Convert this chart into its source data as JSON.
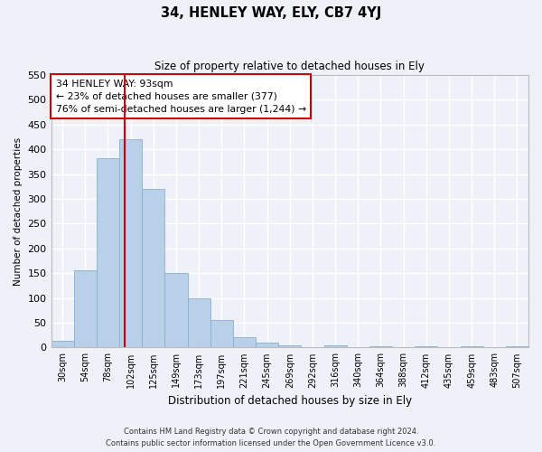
{
  "title": "34, HENLEY WAY, ELY, CB7 4YJ",
  "subtitle": "Size of property relative to detached houses in Ely",
  "xlabel": "Distribution of detached houses by size in Ely",
  "ylabel": "Number of detached properties",
  "categories": [
    "30sqm",
    "54sqm",
    "78sqm",
    "102sqm",
    "125sqm",
    "149sqm",
    "173sqm",
    "197sqm",
    "221sqm",
    "245sqm",
    "269sqm",
    "292sqm",
    "316sqm",
    "340sqm",
    "364sqm",
    "388sqm",
    "412sqm",
    "435sqm",
    "459sqm",
    "483sqm",
    "507sqm"
  ],
  "values": [
    13,
    155,
    383,
    420,
    320,
    150,
    100,
    55,
    20,
    10,
    5,
    0,
    5,
    0,
    3,
    0,
    2,
    0,
    2,
    0,
    3
  ],
  "bar_color": "#b8d0e8",
  "bar_edge_color": "#8ab0d0",
  "background_color": "#eef2f8",
  "grid_color": "#ffffff",
  "property_line_x": 2.75,
  "property_line_color": "#cc0000",
  "annotation_text": "34 HENLEY WAY: 93sqm\n← 23% of detached houses are smaller (377)\n76% of semi-detached houses are larger (1,244) →",
  "annotation_box_color": "#ffffff",
  "annotation_box_edge": "#cc0000",
  "ylim": [
    0,
    550
  ],
  "yticks": [
    0,
    50,
    100,
    150,
    200,
    250,
    300,
    350,
    400,
    450,
    500,
    550
  ],
  "footer_line1": "Contains HM Land Registry data © Crown copyright and database right 2024.",
  "footer_line2": "Contains public sector information licensed under the Open Government Licence v3.0."
}
